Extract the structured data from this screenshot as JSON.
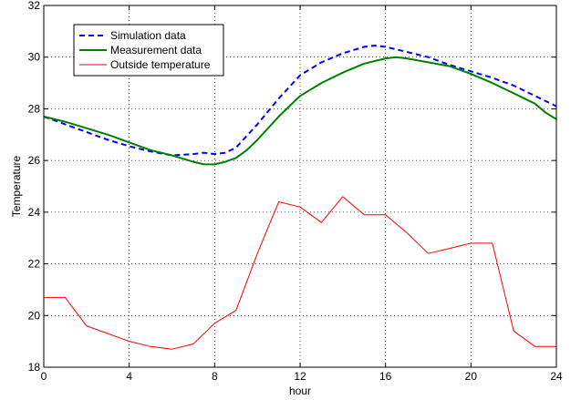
{
  "chart_data": {
    "type": "line",
    "xlabel": "hour",
    "ylabel": "Temperature",
    "xlim": [
      0,
      24
    ],
    "ylim": [
      18,
      32
    ],
    "xticks": [
      0,
      4,
      8,
      12,
      16,
      20,
      24
    ],
    "yticks": [
      18,
      20,
      22,
      24,
      26,
      28,
      30,
      32
    ],
    "grid": true,
    "legend_position": "top-left",
    "series": [
      {
        "name": "Simulation data",
        "color": "#0000ff",
        "style": "dashed",
        "x": [
          0,
          1,
          2,
          3,
          4,
          5,
          6,
          7,
          7.5,
          8,
          8.5,
          9,
          10,
          11,
          12,
          13,
          14,
          15,
          15.5,
          16,
          17,
          18,
          19,
          20,
          21,
          22,
          23,
          24
        ],
        "y": [
          27.7,
          27.4,
          27.1,
          26.8,
          26.55,
          26.35,
          26.2,
          26.25,
          26.3,
          26.25,
          26.3,
          26.5,
          27.4,
          28.4,
          29.3,
          29.8,
          30.15,
          30.4,
          30.45,
          30.4,
          30.2,
          30.0,
          29.7,
          29.45,
          29.2,
          28.9,
          28.5,
          28.1
        ]
      },
      {
        "name": "Measurement data",
        "color": "#008000",
        "style": "solid",
        "x": [
          0,
          1,
          2,
          3,
          4,
          5,
          6,
          7,
          7.5,
          8,
          8.5,
          9,
          9.5,
          10,
          11,
          12,
          13,
          14,
          15,
          16,
          16.5,
          17,
          18,
          19,
          20,
          21,
          22,
          23,
          23.5,
          24
        ],
        "y": [
          27.7,
          27.5,
          27.25,
          27.0,
          26.7,
          26.4,
          26.2,
          25.95,
          25.85,
          25.85,
          25.95,
          26.1,
          26.4,
          26.8,
          27.7,
          28.5,
          29.0,
          29.4,
          29.75,
          29.95,
          30.0,
          29.95,
          29.8,
          29.65,
          29.35,
          29.0,
          28.6,
          28.2,
          27.85,
          27.6
        ]
      },
      {
        "name": "Outside temperature",
        "color": "#ff0000",
        "style": "solid",
        "x": [
          0,
          1,
          2,
          3,
          4,
          5,
          6,
          7,
          8,
          9,
          10,
          11,
          12,
          13,
          14,
          15,
          16,
          17,
          18,
          19,
          20,
          21,
          22,
          23,
          24
        ],
        "y": [
          20.7,
          20.7,
          19.6,
          19.3,
          19.0,
          18.8,
          18.7,
          18.9,
          19.7,
          20.2,
          22.4,
          24.4,
          24.2,
          23.6,
          24.6,
          23.9,
          23.9,
          23.2,
          22.4,
          22.6,
          22.8,
          22.8,
          19.4,
          18.8,
          18.8
        ]
      }
    ]
  }
}
